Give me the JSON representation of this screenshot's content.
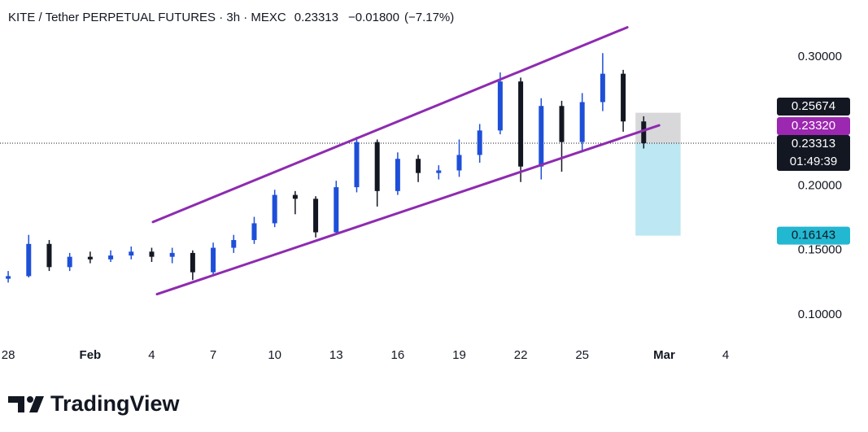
{
  "chart_data": {
    "type": "candlestick",
    "title": "KITE / Tether PERPETUAL FUTURES · 3h · MEXC",
    "last_price": 0.23313,
    "change": {
      "value": -0.018,
      "label": "−0.01800"
    },
    "change_pct": {
      "value": -7.17,
      "label": "(−7.17%)"
    },
    "x": [
      0,
      1,
      2,
      3,
      4,
      5,
      6,
      7,
      8,
      9,
      10,
      11,
      12,
      13,
      14,
      15,
      16,
      17,
      18,
      19,
      20,
      21,
      22,
      23,
      24,
      25,
      26,
      27,
      28,
      29,
      30,
      31
    ],
    "open": [
      0.128,
      0.13,
      0.155,
      0.137,
      0.145,
      0.143,
      0.146,
      0.149,
      0.145,
      0.148,
      0.133,
      0.152,
      0.158,
      0.171,
      0.193,
      0.19,
      0.164,
      0.199,
      0.234,
      0.196,
      0.221,
      0.21,
      0.212,
      0.224,
      0.243,
      0.281,
      0.215,
      0.262,
      0.234,
      0.265,
      0.287,
      0.25
    ],
    "high": [
      0.134,
      0.162,
      0.158,
      0.148,
      0.149,
      0.15,
      0.153,
      0.152,
      0.152,
      0.15,
      0.156,
      0.162,
      0.176,
      0.197,
      0.196,
      0.192,
      0.204,
      0.238,
      0.236,
      0.226,
      0.224,
      0.216,
      0.236,
      0.248,
      0.288,
      0.284,
      0.268,
      0.266,
      0.272,
      0.303,
      0.29,
      0.254
    ],
    "low": [
      0.125,
      0.129,
      0.134,
      0.134,
      0.14,
      0.141,
      0.143,
      0.141,
      0.14,
      0.127,
      0.131,
      0.148,
      0.155,
      0.168,
      0.178,
      0.16,
      0.162,
      0.195,
      0.184,
      0.193,
      0.203,
      0.205,
      0.207,
      0.218,
      0.24,
      0.203,
      0.205,
      0.211,
      0.226,
      0.258,
      0.242,
      0.229
    ],
    "close": [
      0.13,
      0.155,
      0.137,
      0.145,
      0.143,
      0.146,
      0.149,
      0.145,
      0.148,
      0.133,
      0.152,
      0.158,
      0.171,
      0.193,
      0.19,
      0.164,
      0.199,
      0.234,
      0.196,
      0.221,
      0.21,
      0.212,
      0.224,
      0.243,
      0.281,
      0.215,
      0.262,
      0.234,
      0.265,
      0.287,
      0.25,
      0.23313
    ],
    "up_color": "#1e4fd8",
    "down_color": "#131722",
    "xlim": [
      -0.4,
      37.1
    ],
    "xticks": [
      {
        "value": 0,
        "label": "28"
      },
      {
        "value": 4,
        "label": "Feb"
      },
      {
        "value": 7,
        "label": "4"
      },
      {
        "value": 10,
        "label": "7"
      },
      {
        "value": 13,
        "label": "10"
      },
      {
        "value": 16,
        "label": "13"
      },
      {
        "value": 19,
        "label": "16"
      },
      {
        "value": 22,
        "label": "19"
      },
      {
        "value": 25,
        "label": "22"
      },
      {
        "value": 28,
        "label": "25"
      },
      {
        "value": 32,
        "label": "Mar"
      },
      {
        "value": 35,
        "label": "4"
      }
    ],
    "ylim": [
      0.0823,
      0.3442
    ],
    "yticks": [
      {
        "value": 0.1,
        "label": "0.10000"
      },
      {
        "value": 0.15,
        "label": "0.15000"
      },
      {
        "value": 0.2,
        "label": "0.20000"
      },
      {
        "value": 0.3,
        "label": "0.30000"
      }
    ],
    "channel": {
      "color": "#8e2bb0",
      "lines": [
        {
          "x": [
            7.06,
            30.2
          ],
          "y": [
            0.172,
            0.323
          ]
        },
        {
          "x": [
            7.26,
            31.75
          ],
          "y": [
            0.116,
            0.247
          ]
        }
      ]
    },
    "position": {
      "x": [
        30.6,
        32.8
      ],
      "entry": 0.23313,
      "stop": 0.25674,
      "target": 0.16143,
      "stop_color": "#d1d1d4",
      "target_color": "#b2e3f0"
    },
    "price_tags": {
      "stop": {
        "value": 0.25674,
        "color": "#131722"
      },
      "channel": {
        "value": 0.2332,
        "label": "0.23320",
        "color": "#9c27b0"
      },
      "last": {
        "value": 0.23313,
        "color": "#131722"
      },
      "target": {
        "value": 0.16143,
        "color": "#22b8d2"
      }
    },
    "countdown": "01:49:39",
    "logo": "TradingView"
  }
}
